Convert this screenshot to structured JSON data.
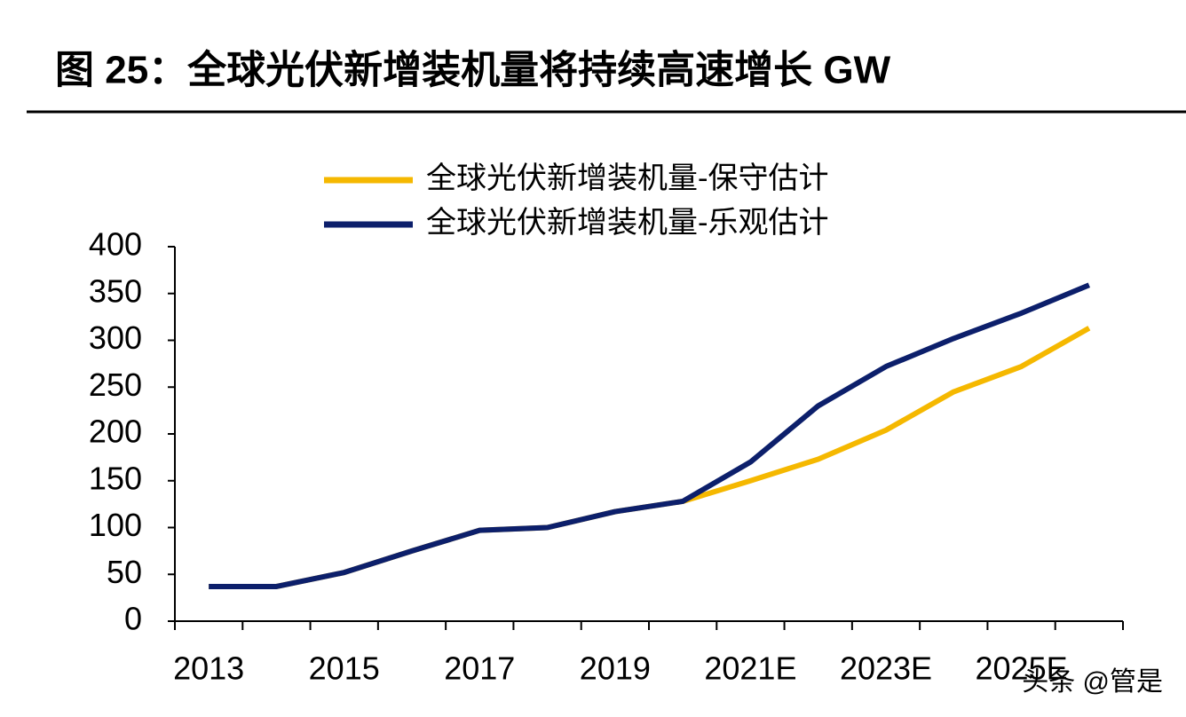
{
  "chart_data": {
    "type": "line",
    "title": "图 25：全球光伏新增装机量将持续高速增长 GW",
    "categories": [
      "2013",
      null,
      "2015",
      null,
      "2017",
      null,
      "2019",
      null,
      "2021E",
      null,
      "2023E",
      null,
      "2025E",
      null
    ],
    "series": [
      {
        "name": "全球光伏新增装机量-保守估计",
        "color": "#f5b800",
        "values": [
          37,
          37,
          52,
          75,
          97,
          100,
          117,
          128,
          150,
          173,
          204,
          245,
          272,
          313
        ]
      },
      {
        "name": "全球光伏新增装机量-乐观估计",
        "color": "#0c1f6b",
        "values": [
          37,
          37,
          52,
          75,
          97,
          100,
          117,
          128,
          170,
          230,
          272,
          302,
          329,
          359
        ]
      }
    ],
    "ylim": [
      0,
      400
    ],
    "yticks": [
      0,
      50,
      100,
      150,
      200,
      250,
      300,
      350,
      400
    ],
    "watermark": "头条 @管是"
  }
}
